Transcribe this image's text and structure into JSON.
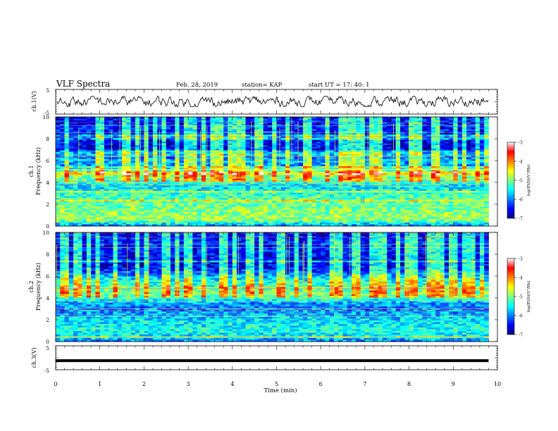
{
  "header": {
    "title": "VLF Spectra",
    "date": "Feb. 28, 2019",
    "station": "station= KAP",
    "start": "start  UT =   17: 40: 1"
  },
  "chart_data": [
    {
      "type": "line",
      "panel": "ch1-voltage",
      "ylabel": "ch.1(V)",
      "ylim": [
        -5,
        5
      ],
      "yticks": [
        "5",
        "-5"
      ],
      "xlim": [
        0,
        10
      ],
      "series": [
        {
          "values_note_x": [
            0,
            9.8
          ],
          "y_mean": 0.0,
          "y_range": [
            -2.0,
            2.2
          ]
        }
      ]
    },
    {
      "type": "heatmap",
      "panel": "ch1-spectrogram",
      "ylabel": "ch.1\nFrequency (kHz)",
      "ylabel_lines": [
        "ch.1",
        "Frequency (kHz)"
      ],
      "ylim": [
        0,
        10
      ],
      "yticks": [
        "0",
        "2",
        "4",
        "6",
        "8",
        "10"
      ],
      "xlim": [
        0,
        10
      ],
      "data_extent_x": [
        0,
        9.8
      ],
      "profile_khz": [
        [
          0.0,
          -6.0
        ],
        [
          0.5,
          -5.0
        ],
        [
          1.0,
          -4.9
        ],
        [
          1.5,
          -5.0
        ],
        [
          2.0,
          -5.1
        ],
        [
          2.5,
          -5.2
        ],
        [
          3.0,
          -5.3
        ],
        [
          3.5,
          -5.6
        ],
        [
          4.0,
          -5.3
        ],
        [
          4.5,
          -5.0
        ],
        [
          5.0,
          -5.1
        ],
        [
          5.5,
          -6.0
        ],
        [
          6.0,
          -5.8
        ],
        [
          6.5,
          -6.3
        ],
        [
          7.0,
          -6.6
        ],
        [
          8.0,
          -6.5
        ],
        [
          9.0,
          -6.4
        ],
        [
          10.0,
          -6.5
        ]
      ]
    },
    {
      "type": "heatmap",
      "panel": "ch2-spectrogram",
      "ylabel_lines": [
        "ch.2",
        "Frequency (kHz)"
      ],
      "ylim": [
        0,
        10
      ],
      "yticks": [
        "0",
        "2",
        "4",
        "6",
        "8",
        "10"
      ],
      "xlim": [
        0,
        10
      ],
      "data_extent_x": [
        0,
        9.8
      ],
      "profile_khz": [
        [
          0.0,
          -6.0
        ],
        [
          0.5,
          -5.6
        ],
        [
          1.0,
          -5.4
        ],
        [
          1.5,
          -5.5
        ],
        [
          2.0,
          -5.6
        ],
        [
          2.5,
          -5.8
        ],
        [
          3.0,
          -6.0
        ],
        [
          3.5,
          -5.9
        ],
        [
          4.0,
          -5.2
        ],
        [
          4.5,
          -5.0
        ],
        [
          5.0,
          -5.3
        ],
        [
          5.5,
          -5.4
        ],
        [
          6.0,
          -5.9
        ],
        [
          6.5,
          -6.3
        ],
        [
          7.0,
          -6.6
        ],
        [
          8.0,
          -6.5
        ],
        [
          9.0,
          -6.4
        ],
        [
          10.0,
          -6.5
        ]
      ]
    },
    {
      "type": "line",
      "panel": "ch3-voltage",
      "ylabel": "ch.3(V)",
      "ylim": [
        -5,
        5
      ],
      "yticks": [
        "5",
        "-5"
      ],
      "xlabel": "Time  (min)",
      "xlim": [
        0,
        10
      ],
      "xticks": [
        "0",
        "1",
        "2",
        "3",
        "4",
        "5",
        "6",
        "7",
        "8",
        "9",
        "10"
      ],
      "series": [
        {
          "x": [
            0,
            9.8
          ],
          "y": [
            -1.2,
            -1.2
          ]
        }
      ]
    }
  ],
  "colorbar": {
    "label": "log(PSD)(V²/Hz)",
    "range": [
      -7,
      -3
    ],
    "ticks": [
      "-3",
      "-4",
      "-5",
      "-6",
      "-7"
    ],
    "colors": [
      "#000080",
      "#0000ff",
      "#0080ff",
      "#00ffff",
      "#80ff80",
      "#ffff00",
      "#ff8000",
      "#ff0000",
      "#ffffff"
    ]
  }
}
